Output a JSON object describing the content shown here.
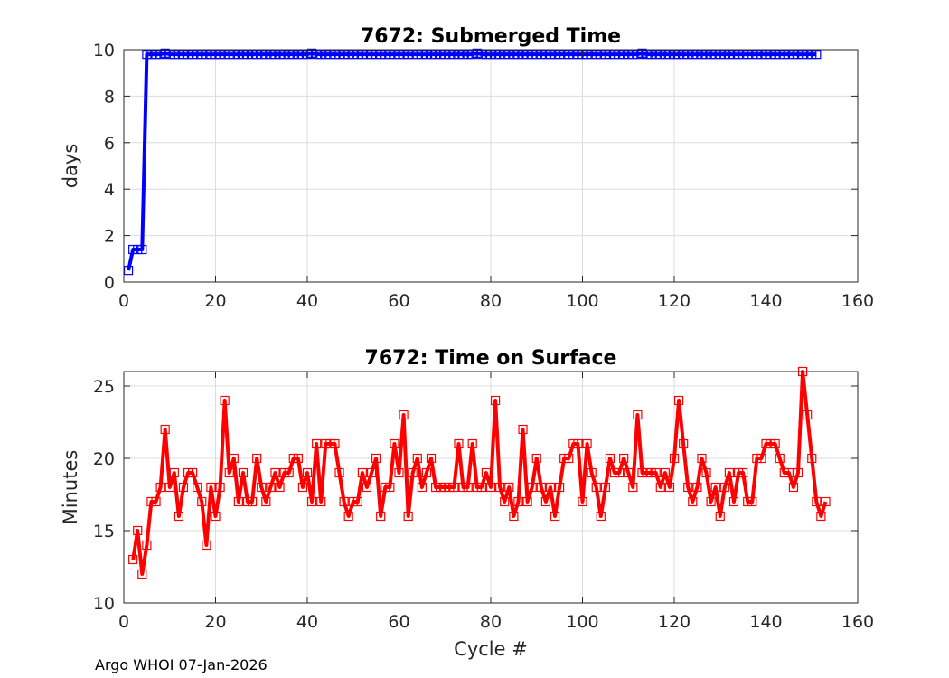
{
  "footer_text": "Argo WHOI 07-Jan-2026",
  "chart_data": [
    {
      "type": "line",
      "title": "7672: Submerged Time",
      "xlabel": "",
      "ylabel": "days",
      "xlim": [
        0,
        160
      ],
      "ylim": [
        0,
        10
      ],
      "xticks": [
        0,
        20,
        40,
        60,
        80,
        100,
        120,
        140,
        160
      ],
      "yticks": [
        0,
        2,
        4,
        6,
        8,
        10
      ],
      "grid": true,
      "color": "#0000ff",
      "marker": "square",
      "x_start": 1,
      "values": [
        0.5,
        1.4,
        1.4,
        1.4,
        9.8,
        9.8,
        9.8,
        9.8,
        9.85,
        9.8,
        9.8,
        9.8,
        9.8,
        9.8,
        9.8,
        9.8,
        9.8,
        9.8,
        9.8,
        9.8,
        9.8,
        9.8,
        9.8,
        9.8,
        9.8,
        9.8,
        9.8,
        9.8,
        9.8,
        9.8,
        9.8,
        9.8,
        9.8,
        9.8,
        9.8,
        9.8,
        9.8,
        9.8,
        9.8,
        9.8,
        9.85,
        9.8,
        9.8,
        9.8,
        9.8,
        9.8,
        9.8,
        9.8,
        9.8,
        9.8,
        9.8,
        9.8,
        9.8,
        9.8,
        9.8,
        9.8,
        9.8,
        9.8,
        9.8,
        9.8,
        9.8,
        9.8,
        9.8,
        9.8,
        9.8,
        9.8,
        9.8,
        9.8,
        9.8,
        9.8,
        9.8,
        9.8,
        9.8,
        9.8,
        9.8,
        9.8,
        9.85,
        9.8,
        9.8,
        9.8,
        9.8,
        9.8,
        9.8,
        9.8,
        9.8,
        9.8,
        9.8,
        9.8,
        9.8,
        9.8,
        9.8,
        9.8,
        9.8,
        9.8,
        9.8,
        9.8,
        9.8,
        9.8,
        9.8,
        9.8,
        9.8,
        9.8,
        9.8,
        9.8,
        9.8,
        9.8,
        9.8,
        9.8,
        9.8,
        9.8,
        9.8,
        9.8,
        9.85,
        9.8,
        9.8,
        9.8,
        9.8,
        9.8,
        9.8,
        9.8,
        9.8,
        9.8,
        9.8,
        9.8,
        9.8,
        9.8,
        9.8,
        9.8,
        9.8,
        9.8,
        9.8,
        9.8,
        9.8,
        9.8,
        9.8,
        9.8,
        9.8,
        9.8,
        9.8,
        9.8,
        9.8,
        9.8,
        9.8,
        9.8,
        9.8,
        9.8,
        9.8,
        9.8,
        9.8,
        9.8,
        9.8
      ]
    },
    {
      "type": "line",
      "title": "7672: Time on Surface",
      "xlabel": "Cycle #",
      "ylabel": "Minutes",
      "xlim": [
        0,
        160
      ],
      "ylim": [
        10,
        26
      ],
      "xticks": [
        0,
        20,
        40,
        60,
        80,
        100,
        120,
        140,
        160
      ],
      "yticks": [
        10,
        15,
        20,
        25
      ],
      "grid": true,
      "color": "#ff0000",
      "marker": "square",
      "x_start": 2,
      "values": [
        13,
        15,
        12,
        14,
        17,
        17,
        18,
        22,
        18,
        19,
        16,
        18,
        19,
        19,
        18,
        17,
        14,
        18,
        16,
        18,
        24,
        19,
        20,
        17,
        19,
        17,
        17,
        20,
        18,
        17,
        18,
        19,
        18,
        19,
        19,
        20,
        20,
        18,
        19,
        17,
        21,
        17,
        21,
        21,
        21,
        19,
        17,
        16,
        17,
        17,
        19,
        18,
        19,
        20,
        16,
        18,
        18,
        21,
        19,
        23,
        16,
        19,
        20,
        18,
        19,
        20,
        18,
        18,
        18,
        18,
        18,
        21,
        18,
        18,
        21,
        18,
        18,
        19,
        18,
        24,
        18,
        17,
        18,
        16,
        17,
        22,
        17,
        18,
        20,
        18,
        17,
        18,
        16,
        18,
        20,
        20,
        21,
        21,
        17,
        21,
        19,
        18,
        16,
        18,
        20,
        19,
        19,
        20,
        19,
        18,
        23,
        19,
        19,
        19,
        19,
        18,
        19,
        18,
        20,
        24,
        21,
        18,
        17,
        18,
        20,
        19,
        17,
        18,
        16,
        18,
        19,
        17,
        19,
        19,
        17,
        17,
        20,
        20,
        21,
        21,
        21,
        20,
        19,
        19,
        18,
        19,
        26,
        23,
        20,
        17,
        16,
        17
      ]
    }
  ]
}
